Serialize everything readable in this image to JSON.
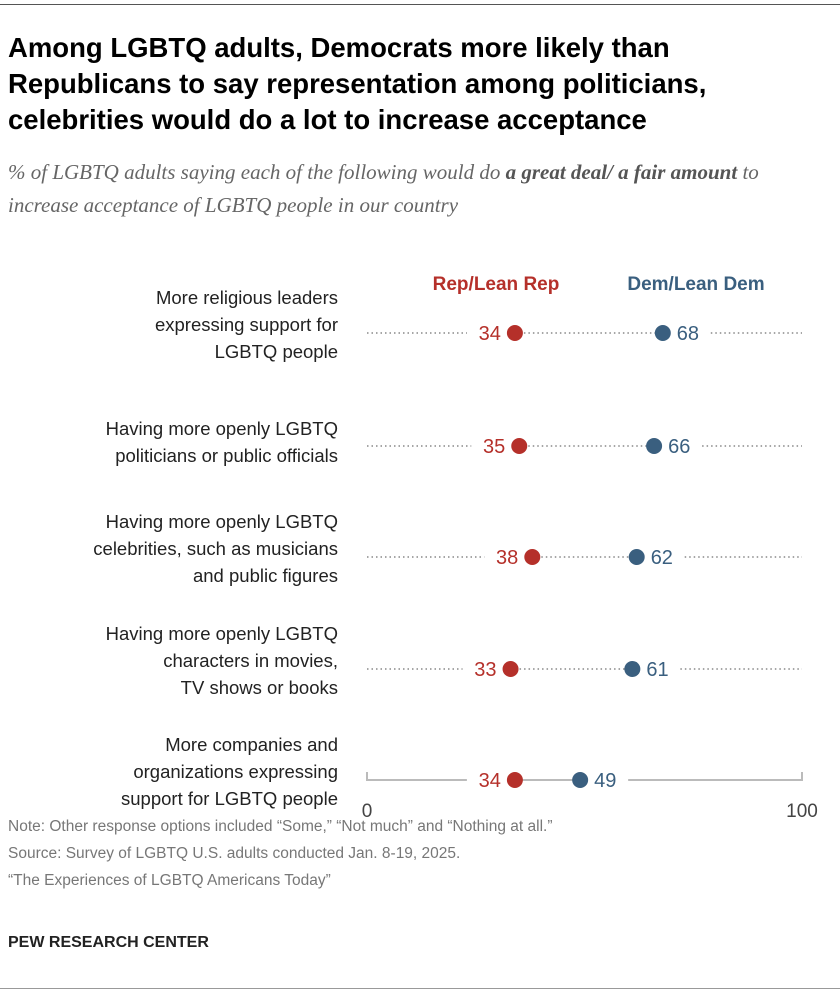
{
  "title": "Among LGBTQ adults, Democrats more likely than Republicans to say representation among politicians, celebrities would do a lot to increase acceptance",
  "subtitle": {
    "before": "% of LGBTQ adults saying each of the following would do ",
    "bold": "a great deal/ a fair amount",
    "after": " to increase acceptance of LGBTQ people in our country"
  },
  "chart_data": {
    "type": "dot",
    "categories": [
      "More religious leaders expressing support for LGBTQ people",
      "Having more openly LGBTQ politicians or public officials",
      "Having more openly LGBTQ celebrities, such as musicians and public figures",
      "Having more openly LGBTQ characters in movies, TV shows or books",
      "More companies and organizations expressing support for LGBTQ people"
    ],
    "category_lines": [
      [
        "More religious leaders",
        "expressing support for",
        "LGBTQ people"
      ],
      [
        "Having more openly LGBTQ",
        "politicians or public officials"
      ],
      [
        "Having more openly LGBTQ",
        "celebrities, such as musicians",
        "and public figures"
      ],
      [
        "Having more openly LGBTQ",
        "characters in movies,",
        "TV shows or books"
      ],
      [
        "More companies and",
        "organizations expressing",
        "support for LGBTQ people"
      ]
    ],
    "series": [
      {
        "name": "Rep/Lean Rep",
        "color": "#B5302A",
        "values": [
          34,
          35,
          38,
          33,
          34
        ]
      },
      {
        "name": "Dem/Lean Dem",
        "color": "#3A5F7F",
        "values": [
          68,
          66,
          62,
          61,
          49
        ]
      }
    ],
    "xlim": [
      0,
      100
    ],
    "x_ticks": [
      "0",
      "100"
    ],
    "grid": false,
    "legend": "top"
  },
  "footer": {
    "note": "Note: Other response options included “Some,” “Not much” and “Nothing at all.”",
    "source": "Source: Survey of LGBTQ U.S. adults conducted Jan. 8-19, 2025.",
    "report": "“The Experiences of LGBTQ Americans Today”",
    "brand": "PEW RESEARCH CENTER"
  }
}
